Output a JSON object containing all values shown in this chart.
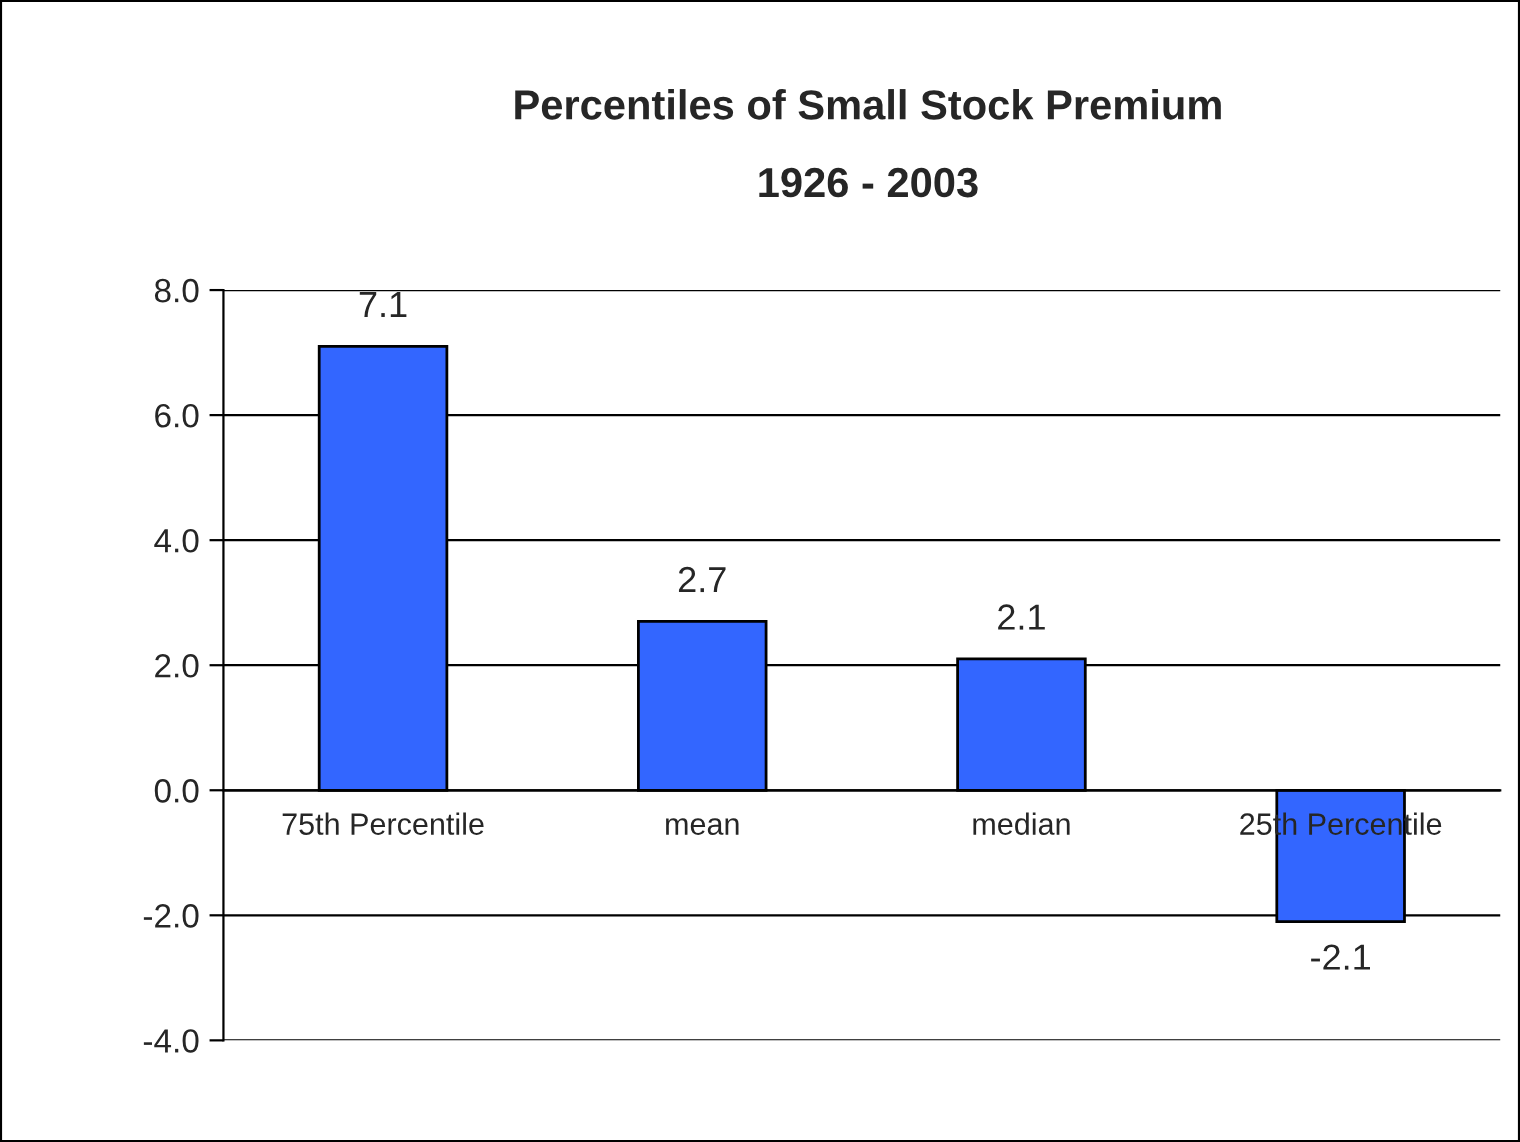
{
  "chart_data": {
    "type": "bar",
    "title": "Percentiles of Small Stock Premium",
    "subtitle": "1926 - 2003",
    "categories": [
      "75th Percentile",
      "mean",
      "median",
      "25th Percentile"
    ],
    "values": [
      7.1,
      2.7,
      2.1,
      -2.1
    ],
    "color": "#3366ff",
    "ylim": [
      -4.0,
      8.0
    ],
    "yticks": [
      {
        "value": -4.0,
        "label": "-4.0"
      },
      {
        "value": -2.0,
        "label": "-2.0"
      },
      {
        "value": 0.0,
        "label": "0.0"
      },
      {
        "value": 2.0,
        "label": "2.0"
      },
      {
        "value": 4.0,
        "label": "4.0"
      },
      {
        "value": 6.0,
        "label": "6.0"
      },
      {
        "value": 8.0,
        "label": "8.0"
      }
    ],
    "grid": "y",
    "data_labels": true,
    "legend": false
  }
}
